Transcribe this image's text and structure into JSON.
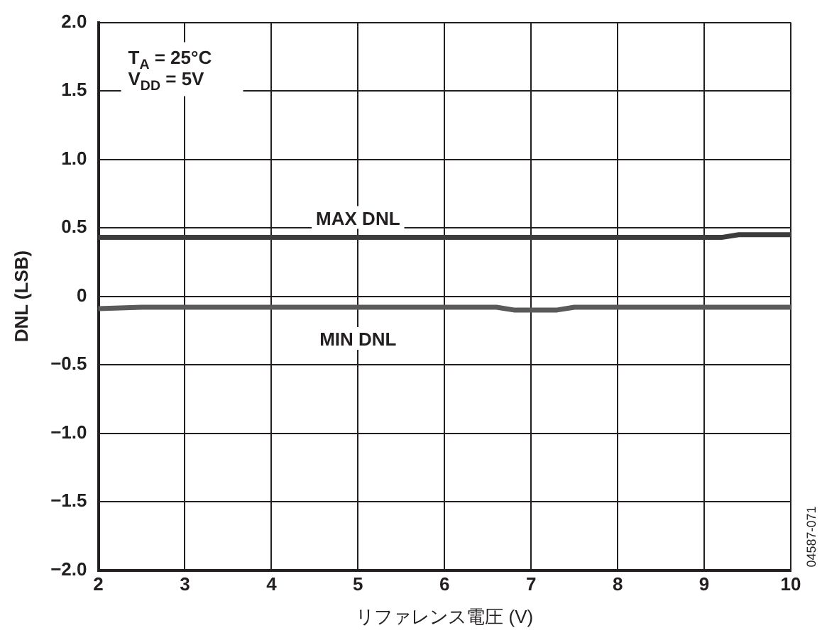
{
  "chart_data": {
    "type": "line",
    "xlabel": "リファレンス電圧 (V)",
    "ylabel": "DNL (LSB)",
    "xlim": [
      2,
      10
    ],
    "xticks": [
      2,
      3,
      4,
      5,
      6,
      7,
      8,
      9,
      10
    ],
    "ylim": [
      -2,
      2
    ],
    "yticks": [
      {
        "value": -2,
        "label": "−2.0"
      },
      {
        "value": -1.5,
        "label": "−1.5"
      },
      {
        "value": -1,
        "label": "−1.0"
      },
      {
        "value": -0.5,
        "label": "−0.5"
      },
      0,
      {
        "value": 0.5,
        "label": "0.5"
      },
      {
        "value": 1,
        "label": "1.0"
      },
      {
        "value": 1.5,
        "label": "1.5"
      },
      {
        "value": 2,
        "label": "2.0"
      }
    ],
    "grid": true,
    "legend": false,
    "marker": "none",
    "line_style": "solid",
    "series": [
      {
        "color": "#3c3c3c",
        "x": [
          2,
          3,
          4,
          5,
          6,
          7,
          8,
          9,
          9.2,
          9.4,
          10
        ],
        "values": [
          0.43,
          0.43,
          0.43,
          0.43,
          0.43,
          0.43,
          0.43,
          0.43,
          0.43,
          0.45,
          0.45
        ]
      },
      {
        "color": "#5a5a5a",
        "x": [
          2,
          2.5,
          3,
          4,
          5,
          6,
          6.6,
          6.8,
          7,
          7.3,
          7.5,
          8,
          9,
          10
        ],
        "values": [
          -0.09,
          -0.08,
          -0.08,
          -0.08,
          -0.08,
          -0.08,
          -0.08,
          -0.1,
          -0.1,
          -0.1,
          -0.08,
          -0.08,
          -0.08,
          -0.08
        ]
      }
    ],
    "annotations": [
      "T$_{A}$ = 25°C",
      "V$_{DD}$ = 5V",
      {
        "text": "MAX DNL",
        "x": 5,
        "y": 0.43
      },
      {
        "text": "MIN DNL",
        "x": 5,
        "y": -0.08
      },
      "04587-071"
    ]
  }
}
